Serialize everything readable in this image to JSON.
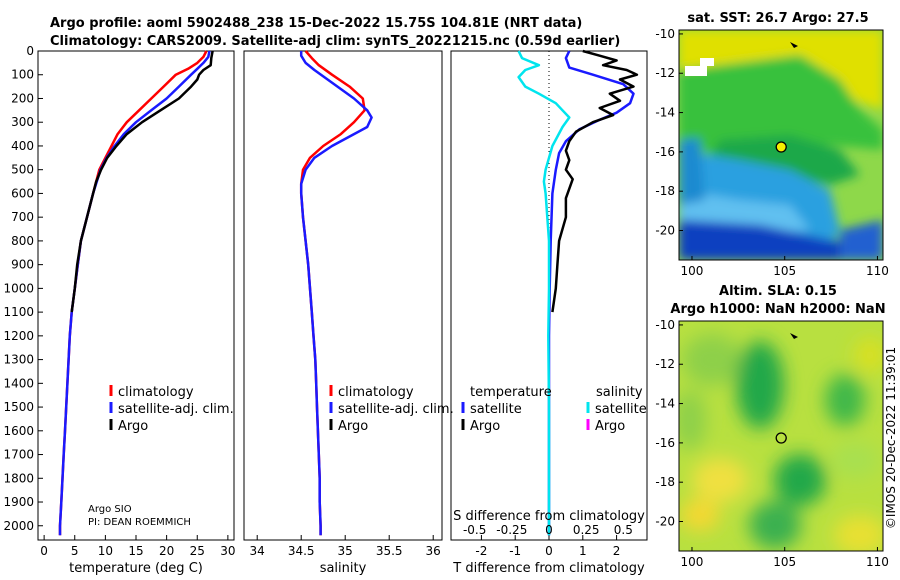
{
  "header": {
    "line1": "Argo profile: aoml 5902488_238 15-Dec-2022 15.75S 104.81E (NRT data)",
    "line2": "Climatology: CARS2009. Satellite-adj clim: synTS_20221215.nc (0.59d earlier)"
  },
  "credit": {
    "line1": "Argo SIO",
    "line2": "PI: DEAN ROEMMICH"
  },
  "watermark": "©IMOS 20-Dec-2022 11:39:01",
  "colors": {
    "red": "#ff0000",
    "blue": "#1a1aff",
    "black": "#000000",
    "cyan": "#00e5ee",
    "magenta": "#ff00ff"
  },
  "chart_data": [
    {
      "type": "line",
      "id": "temperature",
      "xlabel": "temperature (deg C)",
      "xlim": [
        -1,
        31
      ],
      "ylim": [
        0,
        2060
      ],
      "xticks": [
        0,
        5,
        10,
        15,
        20,
        25,
        30
      ],
      "yticks": [
        0,
        100,
        200,
        300,
        400,
        500,
        600,
        700,
        800,
        900,
        1000,
        1100,
        1200,
        1300,
        1400,
        1500,
        1600,
        1700,
        1800,
        1900,
        2000
      ],
      "legend": [
        "climatology",
        "satellite-adj. clim.",
        "Argo"
      ],
      "series": [
        {
          "name": "climatology",
          "color": "#ff0000",
          "points": [
            [
              26.5,
              0
            ],
            [
              26,
              25
            ],
            [
              25,
              50
            ],
            [
              23.5,
              75
            ],
            [
              21.5,
              100
            ],
            [
              19.5,
              150
            ],
            [
              17.5,
              200
            ],
            [
              15.5,
              250
            ],
            [
              13.5,
              300
            ],
            [
              12,
              350
            ],
            [
              11,
              400
            ],
            [
              10,
              450
            ],
            [
              9,
              500
            ],
            [
              8,
              600
            ],
            [
              7,
              700
            ],
            [
              6,
              800
            ],
            [
              5.5,
              900
            ],
            [
              5,
              1000
            ],
            [
              4.5,
              1100
            ],
            [
              4.2,
              1200
            ],
            [
              4,
              1300
            ],
            [
              3.8,
              1400
            ],
            [
              3.6,
              1500
            ],
            [
              3.4,
              1600
            ],
            [
              3.2,
              1700
            ],
            [
              3,
              1800
            ],
            [
              2.8,
              1900
            ],
            [
              2.6,
              2000
            ],
            [
              2.6,
              2040
            ]
          ]
        },
        {
          "name": "satellite-adj. clim.",
          "color": "#1a1aff",
          "points": [
            [
              27,
              0
            ],
            [
              26.8,
              25
            ],
            [
              26,
              50
            ],
            [
              25,
              75
            ],
            [
              24,
              100
            ],
            [
              22,
              150
            ],
            [
              20,
              200
            ],
            [
              17.5,
              250
            ],
            [
              15,
              300
            ],
            [
              13,
              350
            ],
            [
              11.5,
              400
            ],
            [
              10.2,
              450
            ],
            [
              9.2,
              500
            ],
            [
              8,
              600
            ],
            [
              7,
              700
            ],
            [
              6,
              800
            ],
            [
              5.5,
              900
            ],
            [
              5,
              1000
            ],
            [
              4.5,
              1100
            ],
            [
              4.2,
              1200
            ],
            [
              4,
              1300
            ],
            [
              3.8,
              1400
            ],
            [
              3.6,
              1500
            ],
            [
              3.4,
              1600
            ],
            [
              3.2,
              1700
            ],
            [
              3,
              1800
            ],
            [
              2.8,
              1900
            ],
            [
              2.6,
              2000
            ],
            [
              2.6,
              2040
            ]
          ]
        },
        {
          "name": "Argo",
          "color": "#000000",
          "points": [
            [
              27.5,
              0
            ],
            [
              27.3,
              30
            ],
            [
              27.2,
              60
            ],
            [
              26,
              80
            ],
            [
              25.3,
              100
            ],
            [
              25,
              120
            ],
            [
              24,
              150
            ],
            [
              22,
              200
            ],
            [
              19,
              250
            ],
            [
              16,
              300
            ],
            [
              13.5,
              350
            ],
            [
              11.8,
              400
            ],
            [
              10.3,
              450
            ],
            [
              9.3,
              500
            ],
            [
              8.5,
              550
            ],
            [
              8,
              600
            ],
            [
              7,
              700
            ],
            [
              6,
              800
            ],
            [
              5.4,
              900
            ],
            [
              5,
              1000
            ],
            [
              4.5,
              1100
            ]
          ]
        }
      ]
    },
    {
      "type": "line",
      "id": "salinity",
      "xlabel": "salinity",
      "xlim": [
        33.85,
        36.1
      ],
      "ylim": [
        0,
        2060
      ],
      "xticks": [
        34,
        34.5,
        35,
        35.5,
        36
      ],
      "legend": [
        "climatology",
        "satellite-adj. clim.",
        "Argo"
      ],
      "series": [
        {
          "name": "climatology",
          "color": "#ff0000",
          "points": [
            [
              34.55,
              0
            ],
            [
              34.62,
              30
            ],
            [
              34.7,
              60
            ],
            [
              34.85,
              100
            ],
            [
              35.05,
              150
            ],
            [
              35.2,
              200
            ],
            [
              35.22,
              250
            ],
            [
              35.1,
              300
            ],
            [
              34.95,
              350
            ],
            [
              34.75,
              400
            ],
            [
              34.6,
              450
            ],
            [
              34.52,
              500
            ],
            [
              34.5,
              560
            ],
            [
              34.5,
              600
            ],
            [
              34.52,
              700
            ],
            [
              34.55,
              800
            ],
            [
              34.58,
              900
            ],
            [
              34.6,
              1000
            ],
            [
              34.62,
              1100
            ],
            [
              34.64,
              1200
            ],
            [
              34.66,
              1300
            ],
            [
              34.67,
              1400
            ],
            [
              34.68,
              1500
            ],
            [
              34.69,
              1600
            ],
            [
              34.7,
              1700
            ],
            [
              34.71,
              1800
            ],
            [
              34.71,
              1900
            ],
            [
              34.72,
              2000
            ],
            [
              34.72,
              2040
            ]
          ]
        },
        {
          "name": "satellite-adj. clim.",
          "color": "#1a1aff",
          "points": [
            [
              34.5,
              0
            ],
            [
              34.5,
              20
            ],
            [
              34.55,
              50
            ],
            [
              34.65,
              80
            ],
            [
              34.8,
              120
            ],
            [
              34.95,
              160
            ],
            [
              35.1,
              200
            ],
            [
              35.25,
              250
            ],
            [
              35.3,
              280
            ],
            [
              35.25,
              320
            ],
            [
              35.05,
              360
            ],
            [
              34.85,
              400
            ],
            [
              34.65,
              450
            ],
            [
              34.55,
              500
            ],
            [
              34.5,
              560
            ],
            [
              34.5,
              600
            ],
            [
              34.52,
              700
            ],
            [
              34.55,
              800
            ],
            [
              34.58,
              900
            ],
            [
              34.6,
              1000
            ],
            [
              34.62,
              1100
            ],
            [
              34.64,
              1200
            ],
            [
              34.66,
              1300
            ],
            [
              34.67,
              1400
            ],
            [
              34.68,
              1500
            ],
            [
              34.69,
              1600
            ],
            [
              34.7,
              1700
            ],
            [
              34.71,
              1800
            ],
            [
              34.71,
              1900
            ],
            [
              34.72,
              2000
            ],
            [
              34.72,
              2040
            ]
          ]
        }
      ]
    },
    {
      "type": "line",
      "id": "difference",
      "xlabel": "T difference from climatology",
      "top_axis_label": "S difference from climatology",
      "xlim": [
        -2.9,
        2.9
      ],
      "ylim": [
        0,
        2060
      ],
      "xticks": [
        -2,
        -1,
        0,
        1,
        2
      ],
      "top_ticks": [
        "-0.5",
        "-0.25",
        "0",
        "0.25",
        "0.5"
      ],
      "legend_groups": [
        {
          "title": "temperature",
          "entries": [
            "satellite",
            "Argo"
          ]
        },
        {
          "title": "salinity",
          "entries": [
            "satellite",
            "Argo"
          ]
        }
      ],
      "series": [
        {
          "name": "temperature satellite",
          "color": "#1a1aff",
          "points": [
            [
              0.6,
              0
            ],
            [
              0.5,
              30
            ],
            [
              0.6,
              70
            ],
            [
              1.3,
              100
            ],
            [
              2.2,
              140
            ],
            [
              2.5,
              180
            ],
            [
              2.4,
              220
            ],
            [
              2.0,
              260
            ],
            [
              1.5,
              290
            ],
            [
              0.9,
              330
            ],
            [
              0.5,
              380
            ],
            [
              0.3,
              430
            ],
            [
              0.2,
              500
            ],
            [
              0.1,
              600
            ],
            [
              0.05,
              800
            ],
            [
              0.02,
              1000
            ],
            [
              0,
              1200
            ],
            [
              0,
              1600
            ],
            [
              0,
              2040
            ]
          ]
        },
        {
          "name": "temperature Argo",
          "color": "#000000",
          "points": [
            [
              1.0,
              0
            ],
            [
              1.5,
              20
            ],
            [
              2.0,
              40
            ],
            [
              1.6,
              60
            ],
            [
              2.3,
              80
            ],
            [
              2.6,
              100
            ],
            [
              2.1,
              120
            ],
            [
              2.5,
              150
            ],
            [
              1.8,
              180
            ],
            [
              2.1,
              210
            ],
            [
              1.5,
              240
            ],
            [
              1.9,
              270
            ],
            [
              1.3,
              300
            ],
            [
              0.8,
              340
            ],
            [
              0.6,
              380
            ],
            [
              0.5,
              420
            ],
            [
              0.6,
              460
            ],
            [
              0.5,
              500
            ],
            [
              0.7,
              540
            ],
            [
              0.6,
              580
            ],
            [
              0.5,
              620
            ],
            [
              0.5,
              700
            ],
            [
              0.3,
              800
            ],
            [
              0.25,
              900
            ],
            [
              0.2,
              1000
            ],
            [
              0.1,
              1100
            ]
          ]
        },
        {
          "name": "salinity satellite",
          "color": "#00e5ee",
          "points": [
            [
              -0.9,
              0
            ],
            [
              -0.8,
              30
            ],
            [
              -0.3,
              60
            ],
            [
              -0.7,
              80
            ],
            [
              -0.9,
              110
            ],
            [
              -0.7,
              150
            ],
            [
              -0.3,
              180
            ],
            [
              0.2,
              220
            ],
            [
              0.4,
              250
            ],
            [
              0.6,
              280
            ],
            [
              0.4,
              320
            ],
            [
              0.1,
              400
            ],
            [
              0,
              450
            ],
            [
              -0.1,
              500
            ],
            [
              -0.15,
              550
            ],
            [
              -0.1,
              600
            ],
            [
              -0.05,
              700
            ],
            [
              0,
              800
            ],
            [
              0,
              1000
            ],
            [
              -0.02,
              1200
            ],
            [
              0,
              1500
            ],
            [
              0,
              2040
            ]
          ]
        },
        {
          "name": "salinity Argo",
          "color": "#ff00ff",
          "points": []
        }
      ]
    },
    {
      "type": "heatmap",
      "id": "sst-map",
      "title": "sat. SST: 26.7 Argo: 27.5",
      "xlim": [
        99.3,
        110.3
      ],
      "ylim": [
        -21.5,
        -9.8
      ],
      "xticks": [
        100,
        105,
        110
      ],
      "yticks": [
        -10,
        -12,
        -14,
        -16,
        -18,
        -20
      ],
      "marker": {
        "lon": 104.81,
        "lat": -15.75
      }
    },
    {
      "type": "heatmap",
      "id": "sla-map",
      "title_line1": "Altim. SLA: 0.15",
      "title_line2": "Argo h1000: NaN h2000: NaN",
      "xlim": [
        99.3,
        110.3
      ],
      "ylim": [
        -21.5,
        -9.8
      ],
      "xticks": [
        100,
        105,
        110
      ],
      "yticks": [
        -10,
        -12,
        -14,
        -16,
        -18,
        -20
      ],
      "marker": {
        "lon": 104.81,
        "lat": -15.75
      }
    }
  ]
}
